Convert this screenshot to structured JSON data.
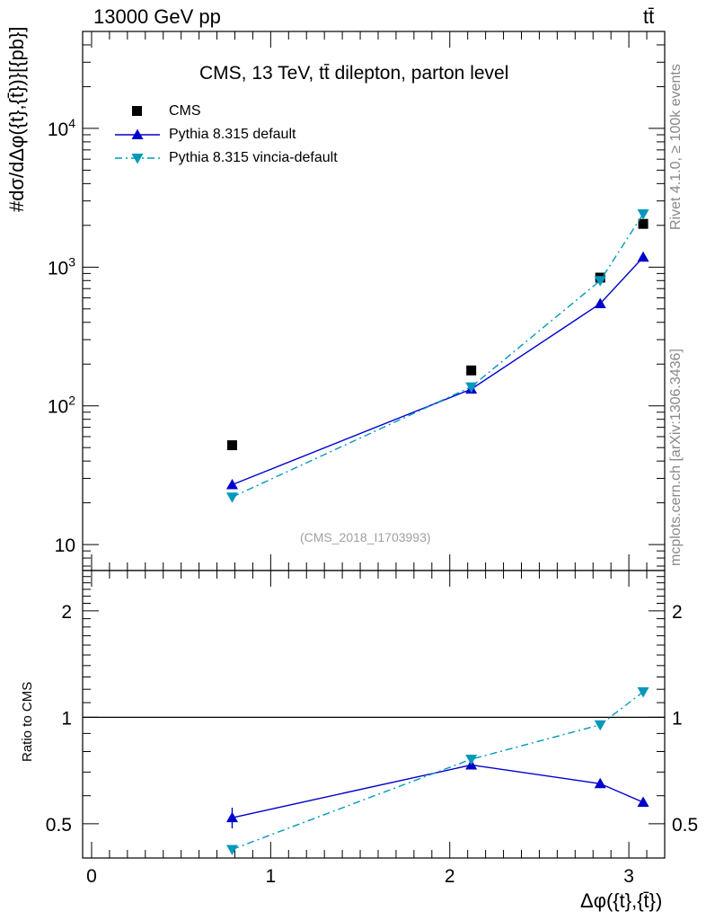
{
  "header": {
    "left": "13000 GeV pp",
    "right": "tt̄",
    "title": "CMS, 13 TeV, tt̄ dilepton, parton level",
    "watermark": "(CMS_2018_I1703993)",
    "side_rivet": "Rivet 4.1.0, ≥ 100k events",
    "side_mcplots": "mcplots.cern.ch [arXiv:1306.3436]"
  },
  "colors": {
    "cms": "#000000",
    "pythia_default": "#0000cc",
    "pythia_vincia": "#0099bb",
    "axis": "#000000"
  },
  "chart_data": [
    {
      "type": "line",
      "title": "CMS, 13 TeV, tt̄ dilepton, parton level",
      "ylabel": "#dσ/dΔφ({t},{t̄})}[{pb}]",
      "xlabel": "Δφ({t},{t̄})",
      "yscale": "log",
      "xlim": [
        -0.05,
        3.2
      ],
      "ylim": [
        6.5,
        50000
      ],
      "x_ticks": [
        0,
        1,
        2,
        3
      ],
      "y_tick_labels": [
        "10",
        "10^2",
        "10^3",
        "10^4"
      ],
      "legend": [
        "CMS",
        "Pythia 8.315 default",
        "Pythia 8.315 vincia-default"
      ],
      "legend_position": "top-left",
      "series": [
        {
          "name": "CMS",
          "marker": "square",
          "line": "none",
          "x": [
            0.785,
            2.12,
            2.84,
            3.08
          ],
          "values": [
            52,
            180,
            840,
            2050
          ]
        },
        {
          "name": "Pythia 8.315 default",
          "marker": "triangle-up",
          "line": "solid",
          "x": [
            0.785,
            2.12,
            2.84,
            3.08
          ],
          "values": [
            27,
            132,
            545,
            1180
          ]
        },
        {
          "name": "Pythia 8.315 vincia-default",
          "marker": "triangle-down",
          "line": "dashdot",
          "x": [
            0.785,
            2.12,
            2.84,
            3.08
          ],
          "values": [
            22,
            137,
            800,
            2420
          ]
        }
      ]
    },
    {
      "type": "line",
      "ylabel": "Ratio to CMS",
      "xlabel": "Δφ({t},{t̄})",
      "yscale": "log",
      "xlim": [
        -0.05,
        3.2
      ],
      "ylim": [
        0.4,
        2.6
      ],
      "x_tick_labels": [
        "0",
        "1",
        "2",
        "3"
      ],
      "y_tick_labels": [
        "0.5",
        "1",
        "2"
      ],
      "reference_line": 1,
      "series": [
        {
          "name": "Pythia 8.315 default",
          "marker": "triangle-up",
          "line": "solid",
          "x": [
            0.785,
            2.12,
            2.84,
            3.08
          ],
          "values": [
            0.52,
            0.733,
            0.649,
            0.575
          ],
          "errors": [
            0.035,
            0.01,
            0.01,
            0.015
          ]
        },
        {
          "name": "Pythia 8.315 vincia-default",
          "marker": "triangle-down",
          "line": "dashdot",
          "x": [
            0.785,
            2.12,
            2.84,
            3.08
          ],
          "values": [
            0.423,
            0.761,
            0.952,
            1.18
          ]
        }
      ]
    }
  ]
}
